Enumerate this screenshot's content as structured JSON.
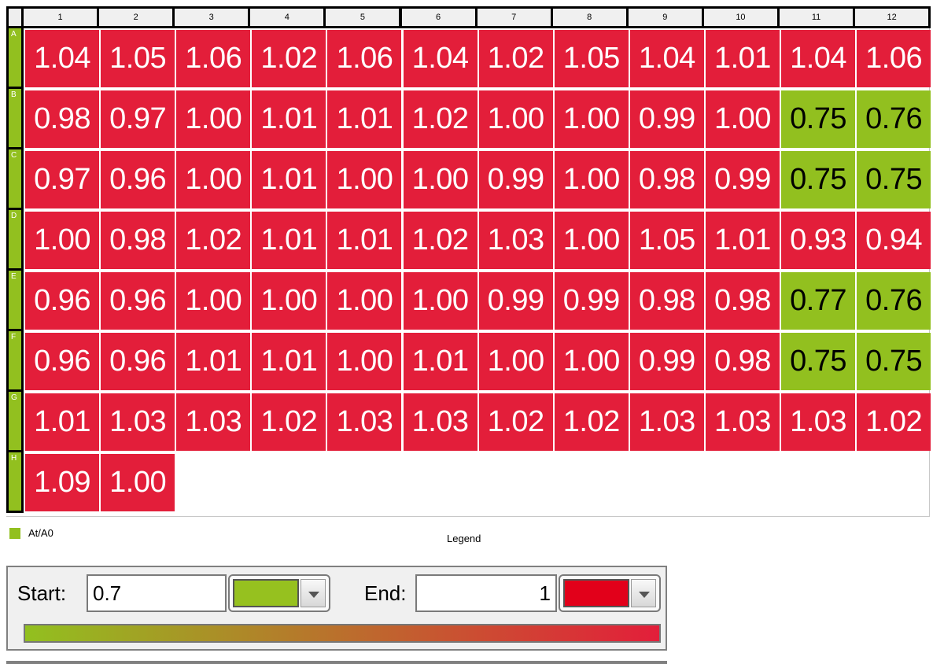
{
  "plate": {
    "columns": [
      "1",
      "2",
      "3",
      "4",
      "5",
      "6",
      "7",
      "8",
      "9",
      "10",
      "11",
      "12"
    ],
    "rows": [
      {
        "label": "A",
        "values": [
          "1.04",
          "1.05",
          "1.06",
          "1.02",
          "1.06",
          "1.04",
          "1.02",
          "1.05",
          "1.04",
          "1.01",
          "1.04",
          "1.06"
        ]
      },
      {
        "label": "B",
        "values": [
          "0.98",
          "0.97",
          "1.00",
          "1.01",
          "1.01",
          "1.02",
          "1.00",
          "1.00",
          "0.99",
          "1.00",
          "0.75",
          "0.76"
        ]
      },
      {
        "label": "C",
        "values": [
          "0.97",
          "0.96",
          "1.00",
          "1.01",
          "1.00",
          "1.00",
          "0.99",
          "1.00",
          "0.98",
          "0.99",
          "0.75",
          "0.75"
        ]
      },
      {
        "label": "D",
        "values": [
          "1.00",
          "0.98",
          "1.02",
          "1.01",
          "1.01",
          "1.02",
          "1.03",
          "1.00",
          "1.05",
          "1.01",
          "0.93",
          "0.94"
        ]
      },
      {
        "label": "E",
        "values": [
          "0.96",
          "0.96",
          "1.00",
          "1.00",
          "1.00",
          "1.00",
          "0.99",
          "0.99",
          "0.98",
          "0.98",
          "0.77",
          "0.76"
        ]
      },
      {
        "label": "F",
        "values": [
          "0.96",
          "0.96",
          "1.01",
          "1.01",
          "1.00",
          "1.01",
          "1.00",
          "1.00",
          "0.99",
          "0.98",
          "0.75",
          "0.75"
        ]
      },
      {
        "label": "G",
        "values": [
          "1.01",
          "1.03",
          "1.03",
          "1.02",
          "1.03",
          "1.03",
          "1.02",
          "1.02",
          "1.03",
          "1.03",
          "1.03",
          "1.02"
        ]
      },
      {
        "label": "H",
        "values": [
          "1.09",
          "1.00"
        ]
      }
    ],
    "low_cells": [
      "B11",
      "B12",
      "C11",
      "C12",
      "E11",
      "E12",
      "F11",
      "F12"
    ]
  },
  "legend": {
    "series_label": "At/A0",
    "title": "Legend"
  },
  "color_scale": {
    "start_label": "Start:",
    "start_value": "0.7",
    "end_label": "End:",
    "end_value": "1"
  },
  "colors": {
    "start": "#92c01f",
    "end": "#e31e3a",
    "start_picker": "#96c11f",
    "end_picker": "#e2001a"
  }
}
